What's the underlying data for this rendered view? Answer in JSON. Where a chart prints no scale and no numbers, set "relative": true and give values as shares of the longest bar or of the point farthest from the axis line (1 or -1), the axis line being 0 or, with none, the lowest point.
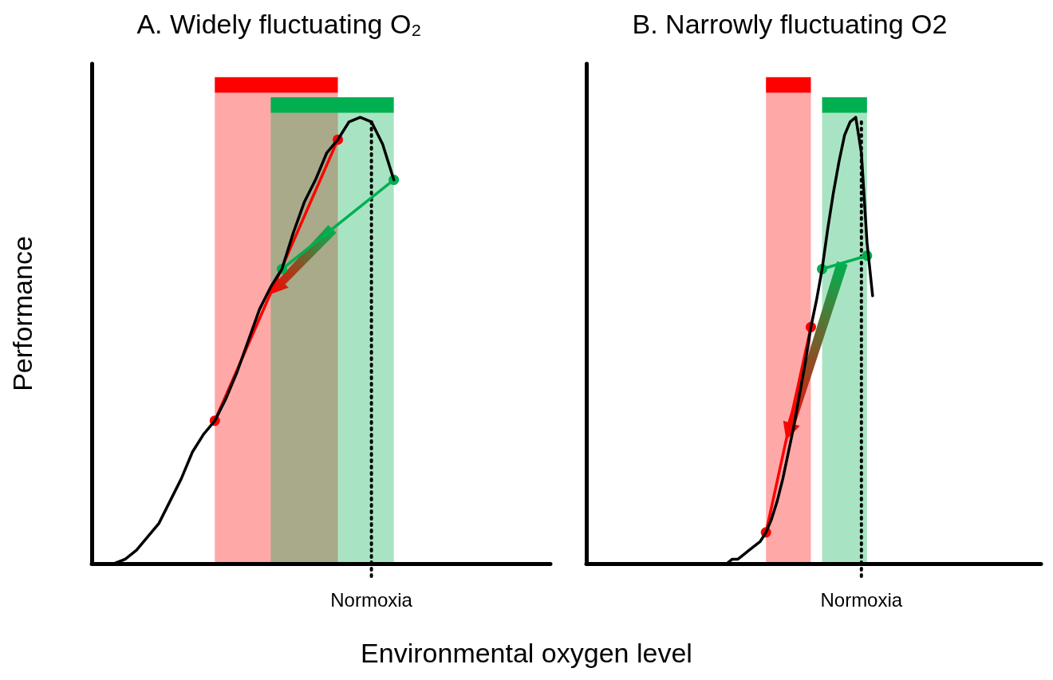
{
  "chart_data": [
    {
      "type": "line",
      "title": "A. Widely fluctuating O₂",
      "xlabel": "Environmental oxygen level",
      "ylabel": "Performance",
      "relative": true,
      "marker": "none",
      "categories": [
        null,
        null,
        null,
        null,
        null,
        null,
        null,
        null,
        null,
        null,
        null,
        null,
        null,
        null,
        null,
        null,
        null,
        null,
        null,
        null,
        null,
        null,
        null,
        null,
        null,
        null,
        null,
        null,
        null,
        null,
        null,
        null,
        null,
        null,
        null,
        null,
        null,
        null,
        null,
        null,
        null,
        null
      ],
      "series": [
        {
          "color": "#000000",
          "values": [
            null,
            null,
            0,
            0.01,
            0.03,
            0.06,
            0.09,
            0.14,
            0.19,
            0.25,
            0.29,
            0.32,
            0.37,
            0.43,
            0.5,
            0.57,
            0.62,
            0.66,
            0.74,
            0.81,
            0.86,
            0.92,
            0.95,
            0.99,
            1.0,
            0.99,
            0.94,
            0.86,
            null,
            null,
            null,
            null,
            null,
            null,
            null,
            null,
            null,
            null,
            null,
            null,
            null,
            null
          ]
        },
        {
          "color": "#ff0000",
          "marker": "circle",
          "values": [
            null,
            null,
            null,
            null,
            null,
            null,
            null,
            null,
            null,
            null,
            null,
            0.32,
            null,
            null,
            null,
            null,
            null,
            null,
            null,
            null,
            null,
            null,
            0.95,
            null,
            null,
            null,
            null,
            null,
            null,
            null,
            null,
            null,
            null,
            null,
            null,
            null,
            null,
            null,
            null,
            null,
            null,
            null
          ]
        },
        {
          "color": "#00b050",
          "marker": "circle",
          "values": [
            null,
            null,
            null,
            null,
            null,
            null,
            null,
            null,
            null,
            null,
            null,
            null,
            null,
            null,
            null,
            null,
            null,
            0.66,
            null,
            null,
            null,
            null,
            null,
            null,
            null,
            null,
            null,
            0.86,
            null,
            null,
            null,
            null,
            null,
            null,
            null,
            null,
            null,
            null,
            null,
            null,
            null,
            null
          ]
        }
      ],
      "annotations": [
        "Normoxia"
      ]
    },
    {
      "type": "line",
      "title": "B. Narrowly fluctuating O2",
      "relative": true,
      "marker": "none",
      "categories": [
        null,
        null,
        null,
        null,
        null,
        null,
        null,
        null,
        null,
        null,
        null,
        null,
        null,
        null,
        null,
        null,
        null,
        null,
        null,
        null,
        null,
        null,
        null,
        null,
        null,
        null,
        null,
        null,
        null,
        null,
        null,
        null,
        null,
        null,
        null,
        null,
        null,
        null,
        null,
        null,
        null,
        null,
        null,
        null,
        null,
        null,
        null,
        null,
        null,
        null,
        null,
        null,
        null,
        null,
        null,
        null,
        null,
        null,
        null,
        null,
        null,
        null,
        null,
        null,
        null,
        null,
        null,
        null,
        null,
        null,
        null,
        null,
        null,
        null,
        null,
        null,
        null,
        null,
        null,
        null,
        null,
        null
      ],
      "series": [
        {
          "color": "#000000",
          "values": [
            null,
            null,
            null,
            null,
            null,
            null,
            null,
            null,
            null,
            null,
            null,
            null,
            null,
            null,
            null,
            null,
            null,
            null,
            null,
            null,
            null,
            null,
            null,
            null,
            null,
            0,
            0.01,
            0.01,
            0.02,
            0.03,
            0.04,
            0.05,
            0.07,
            0.1,
            0.14,
            0.19,
            0.25,
            0.31,
            0.38,
            0.45,
            0.53,
            0.59,
            0.66,
            0.75,
            0.83,
            0.9,
            0.96,
            0.99,
            1.0,
            0.92,
            0.72,
            0.6,
            null,
            null,
            null,
            null,
            null,
            null,
            null,
            null,
            null,
            null,
            null,
            null,
            null,
            null,
            null,
            null,
            null,
            null,
            null,
            null,
            null,
            null,
            null,
            null,
            null,
            null,
            null,
            null,
            null,
            null
          ]
        },
        {
          "color": "#ff0000",
          "marker": "circle",
          "values": [
            null,
            null,
            null,
            null,
            null,
            null,
            null,
            null,
            null,
            null,
            null,
            null,
            null,
            null,
            null,
            null,
            null,
            null,
            null,
            null,
            null,
            null,
            null,
            null,
            null,
            null,
            null,
            null,
            null,
            null,
            null,
            null,
            0.07,
            null,
            null,
            null,
            null,
            null,
            null,
            null,
            0.53,
            null,
            null,
            null,
            null,
            null,
            null,
            null,
            null,
            null,
            null,
            null,
            null,
            null,
            null,
            null,
            null,
            null,
            null,
            null,
            null,
            null,
            null,
            null,
            null,
            null,
            null,
            null,
            null,
            null,
            null,
            null,
            null,
            null,
            null,
            null,
            null,
            null,
            null,
            null,
            null,
            null
          ]
        },
        {
          "color": "#00b050",
          "marker": "circle",
          "values": [
            null,
            null,
            null,
            null,
            null,
            null,
            null,
            null,
            null,
            null,
            null,
            null,
            null,
            null,
            null,
            null,
            null,
            null,
            null,
            null,
            null,
            null,
            null,
            null,
            null,
            null,
            null,
            null,
            null,
            null,
            null,
            null,
            null,
            null,
            null,
            null,
            null,
            null,
            null,
            null,
            null,
            null,
            0.66,
            null,
            null,
            null,
            null,
            null,
            null,
            null,
            0.69,
            null,
            null,
            null,
            null,
            null,
            null,
            null,
            null,
            null,
            null,
            null,
            null,
            null,
            null,
            null,
            null,
            null,
            null,
            null,
            null,
            null,
            null,
            null,
            null,
            null,
            null,
            null,
            null,
            null,
            null,
            null
          ]
        }
      ],
      "annotations": [
        "Normoxia"
      ]
    }
  ]
}
